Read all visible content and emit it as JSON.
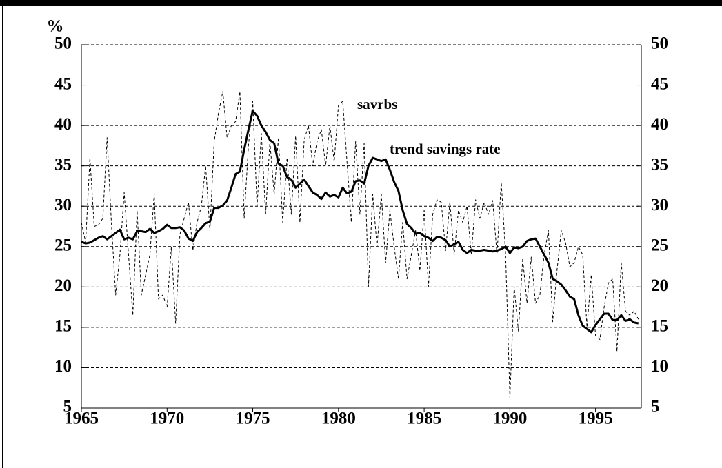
{
  "chart_data": {
    "type": "line",
    "ylabel": "%",
    "annotations": [
      "savrbs",
      "trend savings rate"
    ],
    "x": [
      1965,
      1965.25,
      1965.5,
      1965.75,
      1966,
      1966.25,
      1966.5,
      1966.75,
      1967,
      1967.25,
      1967.5,
      1967.75,
      1968,
      1968.25,
      1968.5,
      1968.75,
      1969,
      1969.25,
      1969.5,
      1969.75,
      1970,
      1970.25,
      1970.5,
      1970.75,
      1971,
      1971.25,
      1971.5,
      1971.75,
      1972,
      1972.25,
      1972.5,
      1972.75,
      1973,
      1973.25,
      1973.5,
      1973.75,
      1974,
      1974.25,
      1974.5,
      1974.75,
      1975,
      1975.25,
      1975.5,
      1975.75,
      1976,
      1976.25,
      1976.5,
      1976.75,
      1977,
      1977.25,
      1977.5,
      1977.75,
      1978,
      1978.25,
      1978.5,
      1978.75,
      1979,
      1979.25,
      1979.5,
      1979.75,
      1980,
      1980.25,
      1980.5,
      1980.75,
      1981,
      1981.25,
      1981.5,
      1981.75,
      1982,
      1982.25,
      1982.5,
      1982.75,
      1983,
      1983.25,
      1983.5,
      1983.75,
      1984,
      1984.25,
      1984.5,
      1984.75,
      1985,
      1985.25,
      1985.5,
      1985.75,
      1986,
      1986.25,
      1986.5,
      1986.75,
      1987,
      1987.25,
      1987.5,
      1987.75,
      1988,
      1988.25,
      1988.5,
      1988.75,
      1989,
      1989.25,
      1989.5,
      1989.75,
      1990,
      1990.25,
      1990.5,
      1990.75,
      1991,
      1991.25,
      1991.5,
      1991.75,
      1992,
      1992.25,
      1992.5,
      1992.75,
      1993,
      1993.25,
      1993.5,
      1993.75,
      1994,
      1994.25,
      1994.5,
      1994.75,
      1995,
      1995.25,
      1995.5,
      1995.75,
      1996,
      1996.25,
      1996.5,
      1996.75,
      1997,
      1997.25,
      1997.5
    ],
    "series": [
      {
        "name": "savrbs",
        "color": "#000000",
        "dashed": true,
        "values": [
          28,
          25.5,
          36,
          27.5,
          27.7,
          28.5,
          38.5,
          28,
          19,
          24,
          31.7,
          24,
          16.5,
          29.5,
          19,
          21.5,
          24,
          31.5,
          18.5,
          19,
          17.5,
          25,
          15.5,
          26.5,
          28.5,
          30.5,
          24.5,
          28,
          30,
          35,
          27,
          38,
          41.5,
          44.2,
          38.5,
          40,
          40.5,
          44.2,
          28.5,
          37.5,
          43,
          30,
          39,
          29,
          38,
          31.5,
          38.5,
          28,
          36,
          29,
          38.7,
          28,
          38.2,
          40,
          35,
          38,
          39.5,
          35,
          40,
          35.5,
          42.5,
          43,
          35.5,
          28,
          38,
          29,
          37.8,
          20,
          31.5,
          25,
          31.5,
          23,
          29.5,
          25,
          21,
          28,
          21,
          24,
          27,
          22,
          29.5,
          20,
          29,
          30.8,
          30.5,
          24.5,
          30.5,
          24,
          29.5,
          28,
          30,
          24,
          30.8,
          28.5,
          30.5,
          29,
          30.7,
          24,
          33,
          24,
          6.3,
          20,
          14.5,
          23.5,
          18,
          23.7,
          18,
          19,
          24,
          27,
          15.7,
          22,
          27,
          25.5,
          22.5,
          23,
          25,
          24,
          15,
          21.5,
          14,
          13.5,
          17.5,
          20.5,
          21,
          12,
          23,
          17,
          16.5,
          17,
          16
        ]
      },
      {
        "name": "trend savings rate",
        "color": "#000000",
        "dashed": false,
        "values": [
          25.6,
          25.4,
          25.5,
          25.8,
          26.1,
          26.3,
          25.9,
          26.3,
          26.7,
          27.1,
          25.9,
          26.1,
          25.9,
          26.9,
          26.9,
          26.8,
          27.2,
          26.7,
          26.9,
          27.2,
          27.7,
          27.3,
          27.3,
          27.4,
          27,
          26,
          25.7,
          26.8,
          27.3,
          27.9,
          28.1,
          29.8,
          29.8,
          30.1,
          30.7,
          32.3,
          34,
          34.3,
          37,
          39.5,
          41.8,
          41.2,
          40,
          39.2,
          38.2,
          37.8,
          35.3,
          35,
          33.6,
          33.3,
          32.3,
          32.8,
          33.3,
          32.5,
          31.7,
          31.4,
          30.9,
          31.7,
          31.2,
          31.4,
          31.1,
          32.3,
          31.6,
          31.8,
          33.1,
          33.2,
          32.8,
          35,
          36,
          35.8,
          35.6,
          35.8,
          34.5,
          33,
          31.9,
          29.5,
          27.8,
          27.3,
          26.6,
          26.7,
          26.3,
          26.1,
          25.7,
          26.2,
          26.1,
          25.8,
          25,
          25.3,
          25.6,
          24.6,
          24.2,
          24.6,
          24.5,
          24.5,
          24.6,
          24.5,
          24.4,
          24.5,
          24.7,
          25,
          24.2,
          24.9,
          24.8,
          25,
          25.7,
          25.9,
          26,
          25,
          24,
          23,
          21,
          20.7,
          20.3,
          19.6,
          18.8,
          18.5,
          16.5,
          15.2,
          14.8,
          14.4,
          15.3,
          16,
          16.7,
          16.7,
          15.9,
          15.9,
          16.5,
          15.8,
          16,
          15.6,
          15.5
        ]
      }
    ],
    "xlim": [
      1965,
      1997.67
    ],
    "xticks": [
      1965,
      1970,
      1975,
      1980,
      1985,
      1990,
      1995
    ],
    "ylim": [
      5,
      50
    ],
    "yticks": [
      5,
      10,
      15,
      20,
      25,
      30,
      35,
      40,
      45,
      50
    ],
    "y2lim": [
      5,
      50
    ],
    "y2ticks": [
      5,
      10,
      15,
      20,
      25,
      30,
      35,
      40,
      45,
      50
    ],
    "grid": true
  }
}
